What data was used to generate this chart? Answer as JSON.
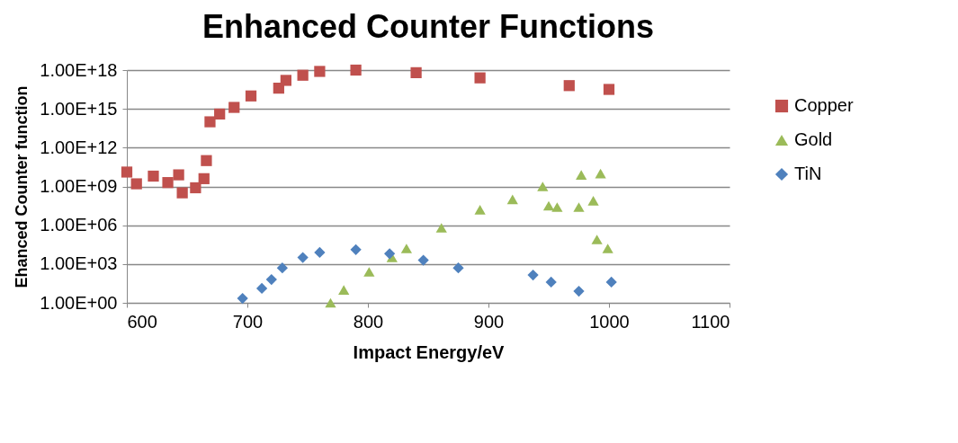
{
  "chart_data": {
    "type": "scatter",
    "title": "Enhanced Counter Functions",
    "xlabel": "Impact Energy/eV",
    "ylabel": "Ehanced Counter function",
    "log": "y",
    "grid": "y",
    "legend": "right",
    "xlim": [
      600,
      1100
    ],
    "xticks": [
      600,
      700,
      800,
      900,
      1000,
      1100
    ],
    "ylim": [
      1,
      1e+18
    ],
    "yticks": [
      {
        "value": 1,
        "label": "1.00E+00"
      },
      {
        "value": 1000.0,
        "label": "1.00E+03"
      },
      {
        "value": 1000000.0,
        "label": "1.00E+06"
      },
      {
        "value": 1000000000.0,
        "label": "1.00E+09"
      },
      {
        "value": 1000000000000.0,
        "label": "1.00E+12"
      },
      {
        "value": 1000000000000000.0,
        "label": "1.00E+15"
      },
      {
        "value": 1e+18,
        "label": "1.00E+18"
      }
    ],
    "series": [
      {
        "name": "Copper",
        "color": "#c0504d",
        "marker": "square",
        "x": [
          600,
          608,
          622,
          634,
          643,
          646,
          657,
          664,
          666,
          669,
          677,
          689,
          703,
          726,
          732,
          746,
          760,
          790,
          840,
          893,
          967,
          1000
        ],
        "values": [
          13000000000.0,
          1600000000.0,
          6300000000.0,
          2000000000.0,
          7900000000.0,
          320000000.0,
          790000000.0,
          4000000000.0,
          100000000000.0,
          100000000000000.0,
          400000000000000.0,
          1300000000000000.0,
          1e+16,
          4e+16,
          1.6e+17,
          4e+17,
          7.9e+17,
          1e+18,
          6.3e+17,
          2.5e+17,
          6.3e+16,
          3.2e+16
        ]
      },
      {
        "name": "Gold",
        "color": "#9bbb59",
        "marker": "triangle",
        "x": [
          769,
          780,
          801,
          820,
          832,
          861,
          893,
          920,
          945,
          950,
          957,
          975,
          977,
          987,
          990,
          993,
          999
        ],
        "values": [
          1,
          10,
          250,
          3200,
          16000.0,
          630000.0,
          16000000.0,
          100000000.0,
          1000000000.0,
          32000000.0,
          25000000.0,
          25000000.0,
          7900000000.0,
          79000000.0,
          79000.0,
          10000000000.0,
          16000.0
        ]
      },
      {
        "name": "TiN",
        "color": "#4f81bd",
        "marker": "diamond",
        "x": [
          696,
          712,
          720,
          729,
          746,
          760,
          790,
          818,
          846,
          875,
          937,
          952,
          975,
          1002
        ],
        "values": [
          2.2,
          13,
          63,
          500,
          3200,
          7900,
          13000.0,
          6300,
          2000,
          500,
          140,
          40,
          8,
          40
        ]
      }
    ]
  }
}
